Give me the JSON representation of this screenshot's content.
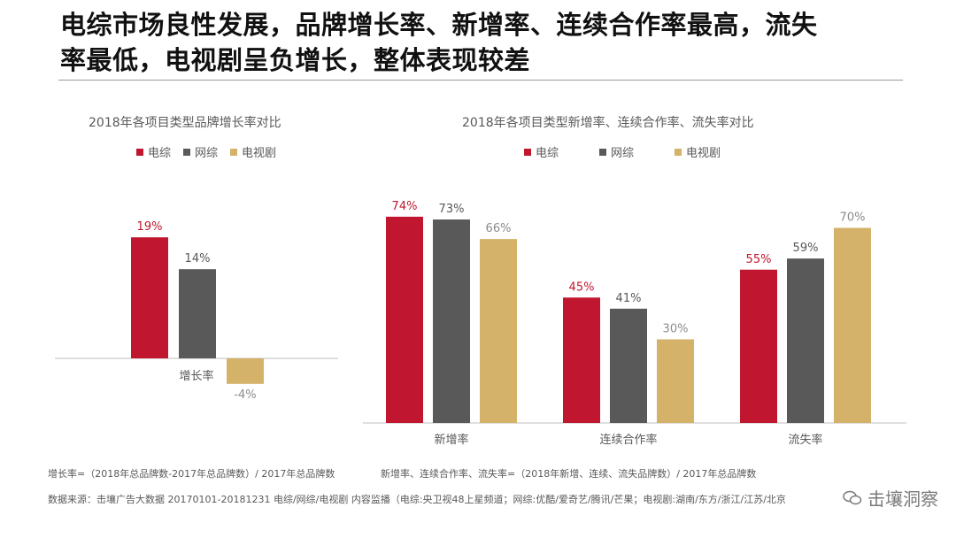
{
  "headline": {
    "line1": "电综市场良性发展，品牌增长率、新增率、连续合作率最高，流失",
    "line2": "率最低，电视剧呈负增长，整体表现较差"
  },
  "colors": {
    "电综": "#c0162f",
    "网综": "#595959",
    "电视剧": "#d4b26a",
    "axis": "#bfbfbf"
  },
  "chart_data": [
    {
      "type": "bar",
      "title": "2018年各项目类型品牌增长率对比",
      "categories": [
        "增长率"
      ],
      "series": [
        {
          "name": "电综",
          "values": [
            19
          ],
          "labels": [
            "19%"
          ]
        },
        {
          "name": "网综",
          "values": [
            14
          ],
          "labels": [
            "14%"
          ]
        },
        {
          "name": "电视剧",
          "values": [
            -4
          ],
          "labels": [
            "-4%"
          ]
        }
      ],
      "ylim": [
        -6,
        25
      ]
    },
    {
      "type": "bar",
      "title": "2018年各项目类型新增率、连续合作率、流失率对比",
      "categories": [
        "新增率",
        "连续合作率",
        "流失率"
      ],
      "series": [
        {
          "name": "电综",
          "values": [
            74,
            45,
            55
          ],
          "labels": [
            "74%",
            "45%",
            "55%"
          ]
        },
        {
          "name": "网综",
          "values": [
            73,
            41,
            59
          ],
          "labels": [
            "73%",
            "41%",
            "59%"
          ]
        },
        {
          "name": "电视剧",
          "values": [
            66,
            30,
            70
          ],
          "labels": [
            "66%",
            "30%",
            "70%"
          ]
        }
      ],
      "ylim": [
        0,
        80
      ]
    }
  ],
  "legend": [
    "电综",
    "网综",
    "电视剧"
  ],
  "notes": {
    "def1": "增长率=（2018年总品牌数-2017年总品牌数）/ 2017年总品牌数",
    "def2": "新增率、连续合作率、流失率=（2018年新增、连续、流失品牌数）/ 2017年总品牌数",
    "source": "数据来源：击壤广告大数据 20170101-20181231 电综/网综/电视剧 内容监播（电综:央卫视48上星频道；网综:优酷/爱奇艺/腾讯/芒果；电视剧:湖南/东方/浙江/江苏/北京"
  },
  "watermark": "击壤洞察"
}
